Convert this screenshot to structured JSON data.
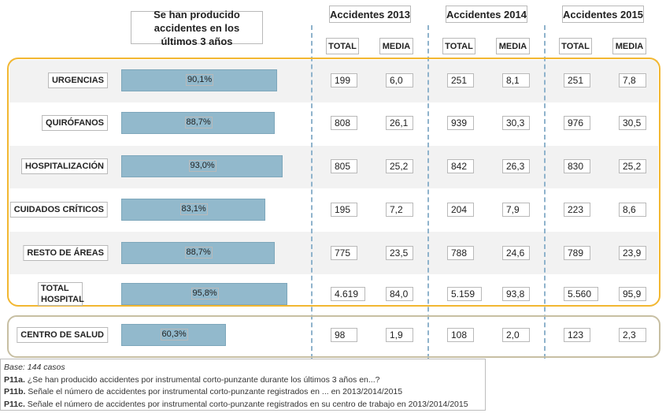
{
  "header": {
    "question": "Se han producido accidentes en los últimos 3 años",
    "years": [
      "Accidentes 2013",
      "Accidentes 2014",
      "Accidentes 2015"
    ],
    "sub_total": "TOTAL",
    "sub_media": "MEDIA"
  },
  "rows": [
    {
      "label": "URGENCIAS",
      "pct": "90,1%",
      "pct_value": 90.1,
      "values": [
        "199",
        "6,0",
        "251",
        "8,1",
        "251",
        "7,8"
      ]
    },
    {
      "label": "QUIRÓFANOS",
      "pct": "88,7%",
      "pct_value": 88.7,
      "values": [
        "808",
        "26,1",
        "939",
        "30,3",
        "976",
        "30,5"
      ]
    },
    {
      "label": "HOSPITALIZACIÓN",
      "pct": "93,0%",
      "pct_value": 93.0,
      "values": [
        "805",
        "25,2",
        "842",
        "26,3",
        "830",
        "25,2"
      ]
    },
    {
      "label": "CUIDADOS CRÍTICOS",
      "pct": "83,1%",
      "pct_value": 83.1,
      "values": [
        "195",
        "7,2",
        "204",
        "7,9",
        "223",
        "8,6"
      ]
    },
    {
      "label": "RESTO DE ÁREAS",
      "pct": "88,7%",
      "pct_value": 88.7,
      "values": [
        "775",
        "23,5",
        "788",
        "24,6",
        "789",
        "23,9"
      ]
    },
    {
      "label_line1": "TOTAL",
      "label_line2": "HOSPITAL",
      "pct": "95,8%",
      "pct_value": 95.8,
      "values": [
        "4.619",
        "84,0",
        "5.159",
        "93,8",
        "5.560",
        "95,9"
      ]
    },
    {
      "label": "CENTRO DE SALUD",
      "pct": "60,3%",
      "pct_value": 60.3,
      "values": [
        "98",
        "1,9",
        "108",
        "2,0",
        "123",
        "2,3"
      ]
    }
  ],
  "footnote": {
    "base": "Base: 144 casos",
    "q1_id": "P11a.",
    "q1": "¿Se han producido accidentes por instrumental corto-punzante durante los últimos 3 años en...?",
    "q2_id": "P11b.",
    "q2": "Señale el número de accidentes por instrumental corto-punzante registrados en ... en 2013/2014/2015",
    "q3_id": "P11c.",
    "q3": "Señale el número de accidentes por instrumental corto-punzante registrados en su centro de trabajo en 2013/2014/2015"
  },
  "chart_data": {
    "type": "bar",
    "title": "Se han producido accidentes en los últimos 3 años",
    "categories": [
      "URGENCIAS",
      "QUIRÓFANOS",
      "HOSPITALIZACIÓN",
      "CUIDADOS CRÍTICOS",
      "RESTO DE ÁREAS",
      "TOTAL HOSPITAL",
      "CENTRO DE SALUD"
    ],
    "values": [
      90.1,
      88.7,
      93.0,
      83.1,
      88.7,
      95.8,
      60.3
    ],
    "table_columns": [
      "Accidentes 2013 TOTAL",
      "Accidentes 2013 MEDIA",
      "Accidentes 2014 TOTAL",
      "Accidentes 2014 MEDIA",
      "Accidentes 2015 TOTAL",
      "Accidentes 2015 MEDIA"
    ],
    "table": [
      [
        199,
        6.0,
        251,
        8.1,
        251,
        7.8
      ],
      [
        808,
        26.1,
        939,
        30.3,
        976,
        30.5
      ],
      [
        805,
        25.2,
        842,
        26.3,
        830,
        25.2
      ],
      [
        195,
        7.2,
        204,
        7.9,
        223,
        8.6
      ],
      [
        775,
        23.5,
        788,
        24.6,
        789,
        23.9
      ],
      [
        4619,
        84.0,
        5159,
        93.8,
        5560,
        95.9
      ],
      [
        98,
        1.9,
        108,
        2.0,
        123,
        2.3
      ]
    ],
    "colors": {
      "bar": "#92b9cc",
      "hospital_frame": "#f2b731",
      "centro_frame": "#c7bfa3",
      "dashed_lines": "#8fb3cc"
    }
  }
}
